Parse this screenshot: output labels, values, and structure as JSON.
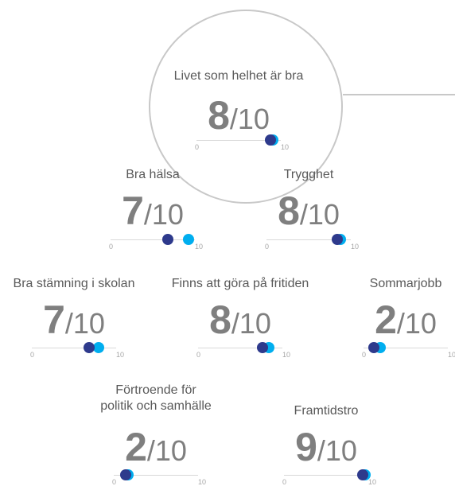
{
  "scale": {
    "min": "0",
    "max": "10"
  },
  "colors": {
    "dot_light": "#00aeef",
    "dot_dark": "#2e3a8c",
    "text": "#595959",
    "score": "#7f7f7f"
  },
  "chart_data": {
    "type": "scatter",
    "metrics": [
      {
        "label": "Livet som helhet är bra",
        "score": "8",
        "denominator": "/10",
        "dark_dot": 8.8,
        "light_dot": 9.1
      },
      {
        "label": "Bra hälsa",
        "score": "7",
        "denominator": "/10",
        "dark_dot": 6.8,
        "light_dot": 9.2
      },
      {
        "label": "Trygghet",
        "score": "8",
        "denominator": "/10",
        "dark_dot": 8.4,
        "light_dot": 8.8
      },
      {
        "label": "Bra stämning i skolan",
        "score": "7",
        "denominator": "/10",
        "dark_dot": 6.8,
        "light_dot": 7.9
      },
      {
        "label": "Finns att göra på fritiden",
        "score": "8",
        "denominator": "/10",
        "dark_dot": 7.6,
        "light_dot": 8.4
      },
      {
        "label": "Sommarjobb",
        "score": "2",
        "denominator": "/10",
        "dark_dot": 1.2,
        "light_dot": 2.0
      },
      {
        "label": "Förtroende för\npolitik och samhälle",
        "score": "2",
        "denominator": "/10",
        "dark_dot": 1.4,
        "light_dot": 1.7
      },
      {
        "label": "Framtidstro",
        "score": "9",
        "denominator": "/10",
        "dark_dot": 9.3,
        "light_dot": 9.6
      }
    ]
  }
}
